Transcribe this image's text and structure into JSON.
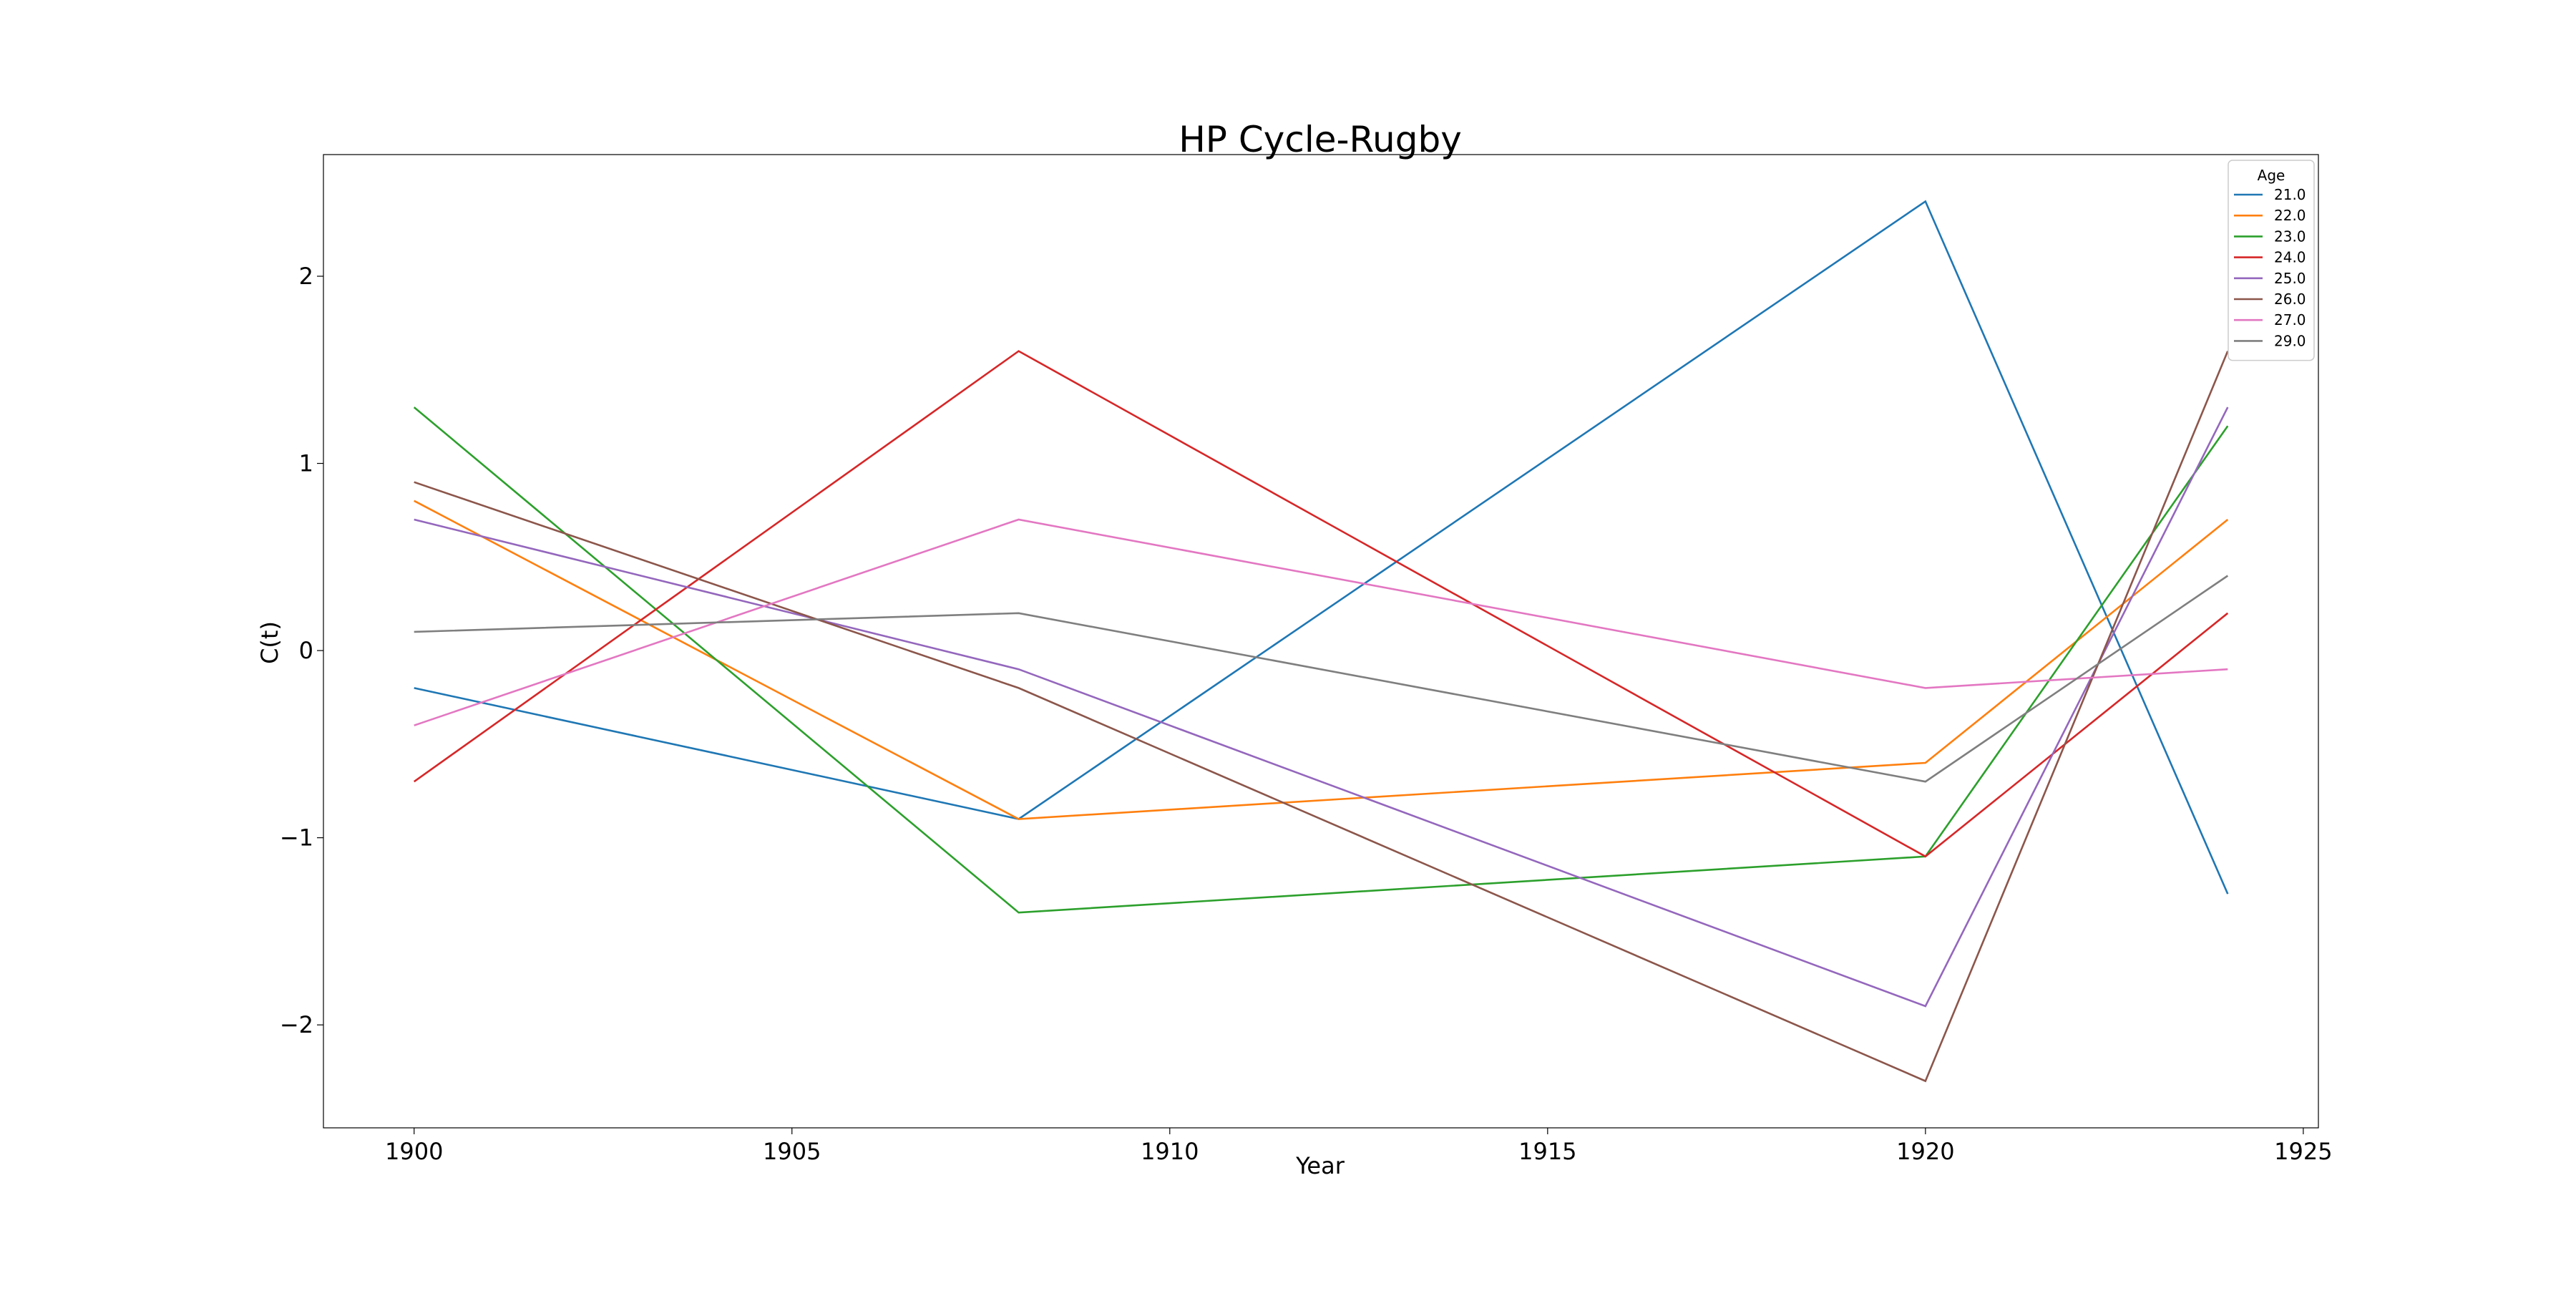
{
  "chart_data": {
    "type": "line",
    "title": "HP Cycle-Rugby",
    "xlabel": "Year",
    "ylabel": "C(t)",
    "xlim": [
      1898.8,
      1925.2
    ],
    "ylim": [
      -2.55,
      2.65
    ],
    "xticks": [
      1900,
      1905,
      1910,
      1915,
      1920,
      1925
    ],
    "yticks": [
      -2,
      -1,
      0,
      1,
      2
    ],
    "ytick_labels": [
      "−2",
      "−1",
      "0",
      "1",
      "2"
    ],
    "grid": false,
    "legend": {
      "title": "Age",
      "placement": "top-right"
    },
    "x": [
      1900,
      1908,
      1920,
      1924
    ],
    "series": [
      {
        "name": "21.0",
        "color": "#1f77b4",
        "values": [
          -0.2,
          -0.9,
          2.4,
          -1.3
        ]
      },
      {
        "name": "22.0",
        "color": "#ff7f0e",
        "values": [
          0.8,
          -0.9,
          -0.6,
          0.7
        ]
      },
      {
        "name": "23.0",
        "color": "#2ca02c",
        "values": [
          1.3,
          -1.4,
          -1.1,
          1.2
        ]
      },
      {
        "name": "24.0",
        "color": "#d62728",
        "values": [
          -0.7,
          1.6,
          -1.1,
          0.2
        ]
      },
      {
        "name": "25.0",
        "color": "#9467bd",
        "values": [
          0.7,
          -0.1,
          -1.9,
          1.3
        ]
      },
      {
        "name": "26.0",
        "color": "#8c564b",
        "values": [
          0.9,
          -0.2,
          -2.3,
          1.6
        ]
      },
      {
        "name": "27.0",
        "color": "#e377c2",
        "values": [
          -0.4,
          0.7,
          -0.2,
          -0.1
        ]
      },
      {
        "name": "29.0",
        "color": "#7f7f7f",
        "values": [
          0.1,
          0.2,
          -0.7,
          0.4
        ]
      }
    ]
  }
}
